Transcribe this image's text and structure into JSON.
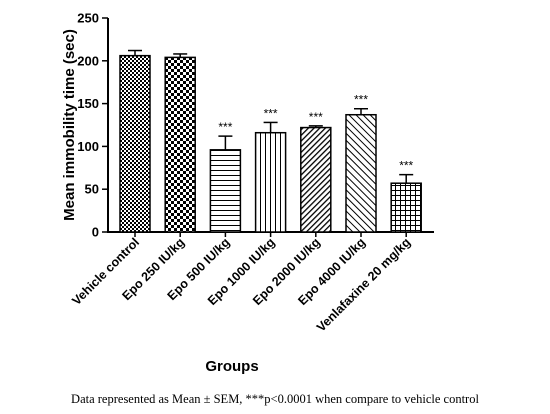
{
  "chart_data": {
    "type": "bar",
    "title": "",
    "xlabel": "Groups",
    "ylabel": "Mean immobility time (sec)",
    "ylim": [
      0,
      250
    ],
    "yticks": [
      0,
      50,
      100,
      150,
      200,
      250
    ],
    "grid": false,
    "categories": [
      "Vehicle control",
      "Epo 250 IU/kg",
      "Epo 500 IU/kg",
      "Epo 1000 IU/kg",
      "Epo 2000 IU/kg",
      "Epo 4000 IU/kg",
      "Venlafaxine 20 mg/kg"
    ],
    "values": [
      206,
      204,
      96,
      116,
      122,
      137,
      57
    ],
    "errors": [
      6,
      4,
      16,
      12,
      2,
      7,
      10
    ],
    "patterns": [
      "checker-fine",
      "checker-coarse",
      "horizontal-lines",
      "vertical-lines",
      "diagonal-dense",
      "diagonal-sparse",
      "grid"
    ],
    "significance": [
      "",
      "",
      "***",
      "***",
      "***",
      "***",
      "***"
    ]
  },
  "footnote": "Data represented as Mean ±  SEM, ***p<0.0001 when compare to vehicle control"
}
